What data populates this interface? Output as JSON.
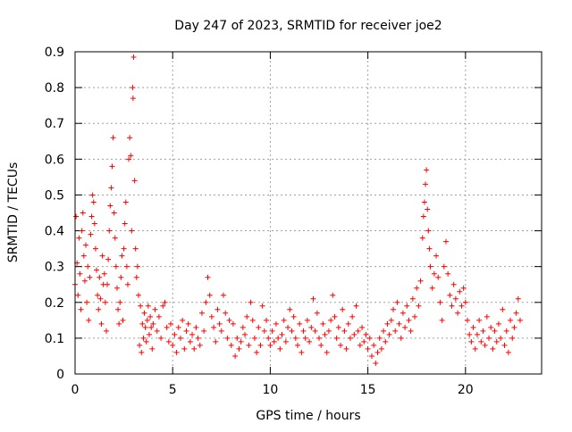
{
  "chart_data": {
    "type": "scatter",
    "title": "Day 247 of 2023, SRMTID for receiver joe2",
    "xlabel": "GPS time / hours",
    "ylabel": "SRMTID / TECUs",
    "xlim": [
      0,
      23.9
    ],
    "ylim": [
      0,
      0.9
    ],
    "xticks": [
      0,
      5,
      10,
      15,
      20
    ],
    "yticks": [
      0,
      0.1,
      0.2,
      0.3,
      0.4,
      0.5,
      0.6,
      0.7,
      0.8,
      0.9
    ],
    "x_tick_labels": [
      "0",
      "5",
      "10",
      "15",
      "20"
    ],
    "y_tick_labels": [
      "0",
      "0.1",
      "0.2",
      "0.3",
      "0.4",
      "0.5",
      "0.6",
      "0.7",
      "0.8",
      "0.9"
    ],
    "grid": true,
    "marker": "+",
    "color": "#ff0000",
    "series": [
      {
        "name": "SRMTID",
        "points": [
          [
            0.0,
            0.25
          ],
          [
            0.05,
            0.44
          ],
          [
            0.1,
            0.31
          ],
          [
            0.15,
            0.22
          ],
          [
            0.2,
            0.38
          ],
          [
            0.25,
            0.28
          ],
          [
            0.3,
            0.18
          ],
          [
            0.35,
            0.4
          ],
          [
            0.4,
            0.45
          ],
          [
            0.45,
            0.33
          ],
          [
            0.5,
            0.26
          ],
          [
            0.55,
            0.36
          ],
          [
            0.6,
            0.2
          ],
          [
            0.65,
            0.3
          ],
          [
            0.7,
            0.15
          ],
          [
            0.75,
            0.27
          ],
          [
            0.8,
            0.39
          ],
          [
            0.85,
            0.44
          ],
          [
            0.9,
            0.5
          ],
          [
            0.95,
            0.48
          ],
          [
            1.0,
            0.42
          ],
          [
            1.05,
            0.35
          ],
          [
            1.1,
            0.29
          ],
          [
            1.15,
            0.22
          ],
          [
            1.2,
            0.18
          ],
          [
            1.25,
            0.27
          ],
          [
            1.3,
            0.21
          ],
          [
            1.35,
            0.14
          ],
          [
            1.4,
            0.33
          ],
          [
            1.45,
            0.25
          ],
          [
            1.5,
            0.28
          ],
          [
            1.55,
            0.2
          ],
          [
            1.6,
            0.12
          ],
          [
            1.65,
            0.25
          ],
          [
            1.7,
            0.32
          ],
          [
            1.75,
            0.4
          ],
          [
            1.8,
            0.47
          ],
          [
            1.85,
            0.52
          ],
          [
            1.9,
            0.58
          ],
          [
            1.95,
            0.66
          ],
          [
            2.0,
            0.45
          ],
          [
            2.05,
            0.38
          ],
          [
            2.1,
            0.3
          ],
          [
            2.15,
            0.24
          ],
          [
            2.2,
            0.18
          ],
          [
            2.25,
            0.14
          ],
          [
            2.3,
            0.2
          ],
          [
            2.35,
            0.27
          ],
          [
            2.4,
            0.33
          ],
          [
            2.45,
            0.15
          ],
          [
            2.5,
            0.35
          ],
          [
            2.55,
            0.42
          ],
          [
            2.6,
            0.48
          ],
          [
            2.65,
            0.3
          ],
          [
            2.7,
            0.25
          ],
          [
            2.75,
            0.6
          ],
          [
            2.8,
            0.66
          ],
          [
            2.85,
            0.61
          ],
          [
            2.9,
            0.4
          ],
          [
            2.95,
            0.8
          ],
          [
            2.97,
            0.77
          ],
          [
            3.0,
            0.885
          ],
          [
            3.05,
            0.54
          ],
          [
            3.1,
            0.35
          ],
          [
            3.15,
            0.27
          ],
          [
            3.2,
            0.3
          ],
          [
            3.25,
            0.22
          ],
          [
            3.3,
            0.08
          ],
          [
            3.35,
            0.19
          ],
          [
            3.4,
            0.06
          ],
          [
            3.45,
            0.14
          ],
          [
            3.5,
            0.1
          ],
          [
            3.55,
            0.17
          ],
          [
            3.6,
            0.13
          ],
          [
            3.65,
            0.09
          ],
          [
            3.7,
            0.15
          ],
          [
            3.75,
            0.19
          ],
          [
            3.8,
            0.11
          ],
          [
            3.85,
            0.16
          ],
          [
            3.9,
            0.13
          ],
          [
            3.95,
            0.07
          ],
          [
            4.0,
            0.14
          ],
          [
            4.1,
            0.18
          ],
          [
            4.2,
            0.12
          ],
          [
            4.3,
            0.16
          ],
          [
            4.4,
            0.1
          ],
          [
            4.5,
            0.19
          ],
          [
            4.6,
            0.2
          ],
          [
            4.7,
            0.13
          ],
          [
            4.8,
            0.09
          ],
          [
            4.9,
            0.14
          ],
          [
            5.0,
            0.08
          ],
          [
            5.1,
            0.11
          ],
          [
            5.2,
            0.06
          ],
          [
            5.3,
            0.13
          ],
          [
            5.4,
            0.1
          ],
          [
            5.5,
            0.15
          ],
          [
            5.6,
            0.07
          ],
          [
            5.7,
            0.12
          ],
          [
            5.8,
            0.14
          ],
          [
            5.9,
            0.09
          ],
          [
            6.0,
            0.11
          ],
          [
            6.1,
            0.07
          ],
          [
            6.2,
            0.13
          ],
          [
            6.3,
            0.1
          ],
          [
            6.4,
            0.08
          ],
          [
            6.5,
            0.17
          ],
          [
            6.6,
            0.12
          ],
          [
            6.7,
            0.2
          ],
          [
            6.8,
            0.27
          ],
          [
            6.9,
            0.22
          ],
          [
            7.0,
            0.16
          ],
          [
            7.1,
            0.13
          ],
          [
            7.2,
            0.09
          ],
          [
            7.3,
            0.18
          ],
          [
            7.4,
            0.14
          ],
          [
            7.5,
            0.12
          ],
          [
            7.6,
            0.22
          ],
          [
            7.7,
            0.17
          ],
          [
            7.8,
            0.1
          ],
          [
            7.9,
            0.15
          ],
          [
            8.0,
            0.08
          ],
          [
            8.1,
            0.14
          ],
          [
            8.2,
            0.05
          ],
          [
            8.3,
            0.1
          ],
          [
            8.4,
            0.07
          ],
          [
            8.5,
            0.09
          ],
          [
            8.6,
            0.13
          ],
          [
            8.7,
            0.11
          ],
          [
            8.8,
            0.16
          ],
          [
            8.9,
            0.08
          ],
          [
            9.0,
            0.2
          ],
          [
            9.1,
            0.15
          ],
          [
            9.2,
            0.1
          ],
          [
            9.3,
            0.06
          ],
          [
            9.4,
            0.13
          ],
          [
            9.5,
            0.08
          ],
          [
            9.6,
            0.19
          ],
          [
            9.7,
            0.12
          ],
          [
            9.8,
            0.15
          ],
          [
            9.9,
            0.1
          ],
          [
            10.0,
            0.08
          ],
          [
            10.1,
            0.12
          ],
          [
            10.2,
            0.09
          ],
          [
            10.3,
            0.14
          ],
          [
            10.4,
            0.1
          ],
          [
            10.5,
            0.07
          ],
          [
            10.6,
            0.11
          ],
          [
            10.7,
            0.15
          ],
          [
            10.8,
            0.09
          ],
          [
            10.9,
            0.13
          ],
          [
            11.0,
            0.18
          ],
          [
            11.1,
            0.12
          ],
          [
            11.2,
            0.16
          ],
          [
            11.3,
            0.1
          ],
          [
            11.4,
            0.08
          ],
          [
            11.5,
            0.14
          ],
          [
            11.6,
            0.06
          ],
          [
            11.7,
            0.12
          ],
          [
            11.8,
            0.1
          ],
          [
            11.9,
            0.15
          ],
          [
            12.0,
            0.09
          ],
          [
            12.1,
            0.13
          ],
          [
            12.2,
            0.21
          ],
          [
            12.3,
            0.12
          ],
          [
            12.4,
            0.17
          ],
          [
            12.5,
            0.1
          ],
          [
            12.6,
            0.08
          ],
          [
            12.7,
            0.14
          ],
          [
            12.8,
            0.11
          ],
          [
            12.9,
            0.06
          ],
          [
            13.0,
            0.12
          ],
          [
            13.1,
            0.15
          ],
          [
            13.2,
            0.22
          ],
          [
            13.3,
            0.16
          ],
          [
            13.4,
            0.1
          ],
          [
            13.5,
            0.13
          ],
          [
            13.6,
            0.08
          ],
          [
            13.7,
            0.18
          ],
          [
            13.8,
            0.12
          ],
          [
            13.9,
            0.07
          ],
          [
            14.0,
            0.14
          ],
          [
            14.1,
            0.1
          ],
          [
            14.2,
            0.16
          ],
          [
            14.3,
            0.11
          ],
          [
            14.4,
            0.19
          ],
          [
            14.5,
            0.12
          ],
          [
            14.6,
            0.08
          ],
          [
            14.7,
            0.13
          ],
          [
            14.8,
            0.09
          ],
          [
            14.9,
            0.11
          ],
          [
            15.0,
            0.07
          ],
          [
            15.1,
            0.1
          ],
          [
            15.2,
            0.05
          ],
          [
            15.3,
            0.08
          ],
          [
            15.4,
            0.03
          ],
          [
            15.5,
            0.06
          ],
          [
            15.6,
            0.1
          ],
          [
            15.7,
            0.07
          ],
          [
            15.8,
            0.12
          ],
          [
            15.9,
            0.09
          ],
          [
            16.0,
            0.14
          ],
          [
            16.1,
            0.11
          ],
          [
            16.2,
            0.15
          ],
          [
            16.3,
            0.18
          ],
          [
            16.4,
            0.12
          ],
          [
            16.5,
            0.2
          ],
          [
            16.6,
            0.14
          ],
          [
            16.7,
            0.1
          ],
          [
            16.8,
            0.17
          ],
          [
            16.9,
            0.13
          ],
          [
            17.0,
            0.19
          ],
          [
            17.1,
            0.15
          ],
          [
            17.2,
            0.12
          ],
          [
            17.3,
            0.21
          ],
          [
            17.4,
            0.16
          ],
          [
            17.5,
            0.24
          ],
          [
            17.6,
            0.19
          ],
          [
            17.7,
            0.26
          ],
          [
            17.8,
            0.38
          ],
          [
            17.85,
            0.44
          ],
          [
            17.9,
            0.48
          ],
          [
            17.95,
            0.53
          ],
          [
            18.0,
            0.57
          ],
          [
            18.05,
            0.46
          ],
          [
            18.1,
            0.4
          ],
          [
            18.15,
            0.35
          ],
          [
            18.2,
            0.3
          ],
          [
            18.3,
            0.24
          ],
          [
            18.4,
            0.28
          ],
          [
            18.5,
            0.33
          ],
          [
            18.6,
            0.27
          ],
          [
            18.7,
            0.2
          ],
          [
            18.8,
            0.15
          ],
          [
            18.9,
            0.3
          ],
          [
            19.0,
            0.37
          ],
          [
            19.1,
            0.28
          ],
          [
            19.2,
            0.22
          ],
          [
            19.3,
            0.19
          ],
          [
            19.4,
            0.25
          ],
          [
            19.5,
            0.21
          ],
          [
            19.6,
            0.17
          ],
          [
            19.7,
            0.23
          ],
          [
            19.8,
            0.19
          ],
          [
            19.9,
            0.24
          ],
          [
            20.0,
            0.2
          ],
          [
            20.1,
            0.15
          ],
          [
            20.2,
            0.11
          ],
          [
            20.3,
            0.09
          ],
          [
            20.4,
            0.13
          ],
          [
            20.5,
            0.07
          ],
          [
            20.6,
            0.11
          ],
          [
            20.7,
            0.15
          ],
          [
            20.8,
            0.09
          ],
          [
            20.9,
            0.12
          ],
          [
            21.0,
            0.08
          ],
          [
            21.1,
            0.16
          ],
          [
            21.2,
            0.1
          ],
          [
            21.3,
            0.13
          ],
          [
            21.4,
            0.07
          ],
          [
            21.5,
            0.12
          ],
          [
            21.6,
            0.09
          ],
          [
            21.7,
            0.14
          ],
          [
            21.8,
            0.1
          ],
          [
            21.9,
            0.18
          ],
          [
            22.0,
            0.08
          ],
          [
            22.1,
            0.12
          ],
          [
            22.2,
            0.06
          ],
          [
            22.3,
            0.15
          ],
          [
            22.4,
            0.1
          ],
          [
            22.5,
            0.13
          ],
          [
            22.6,
            0.17
          ],
          [
            22.7,
            0.21
          ],
          [
            22.8,
            0.15
          ]
        ]
      }
    ]
  }
}
